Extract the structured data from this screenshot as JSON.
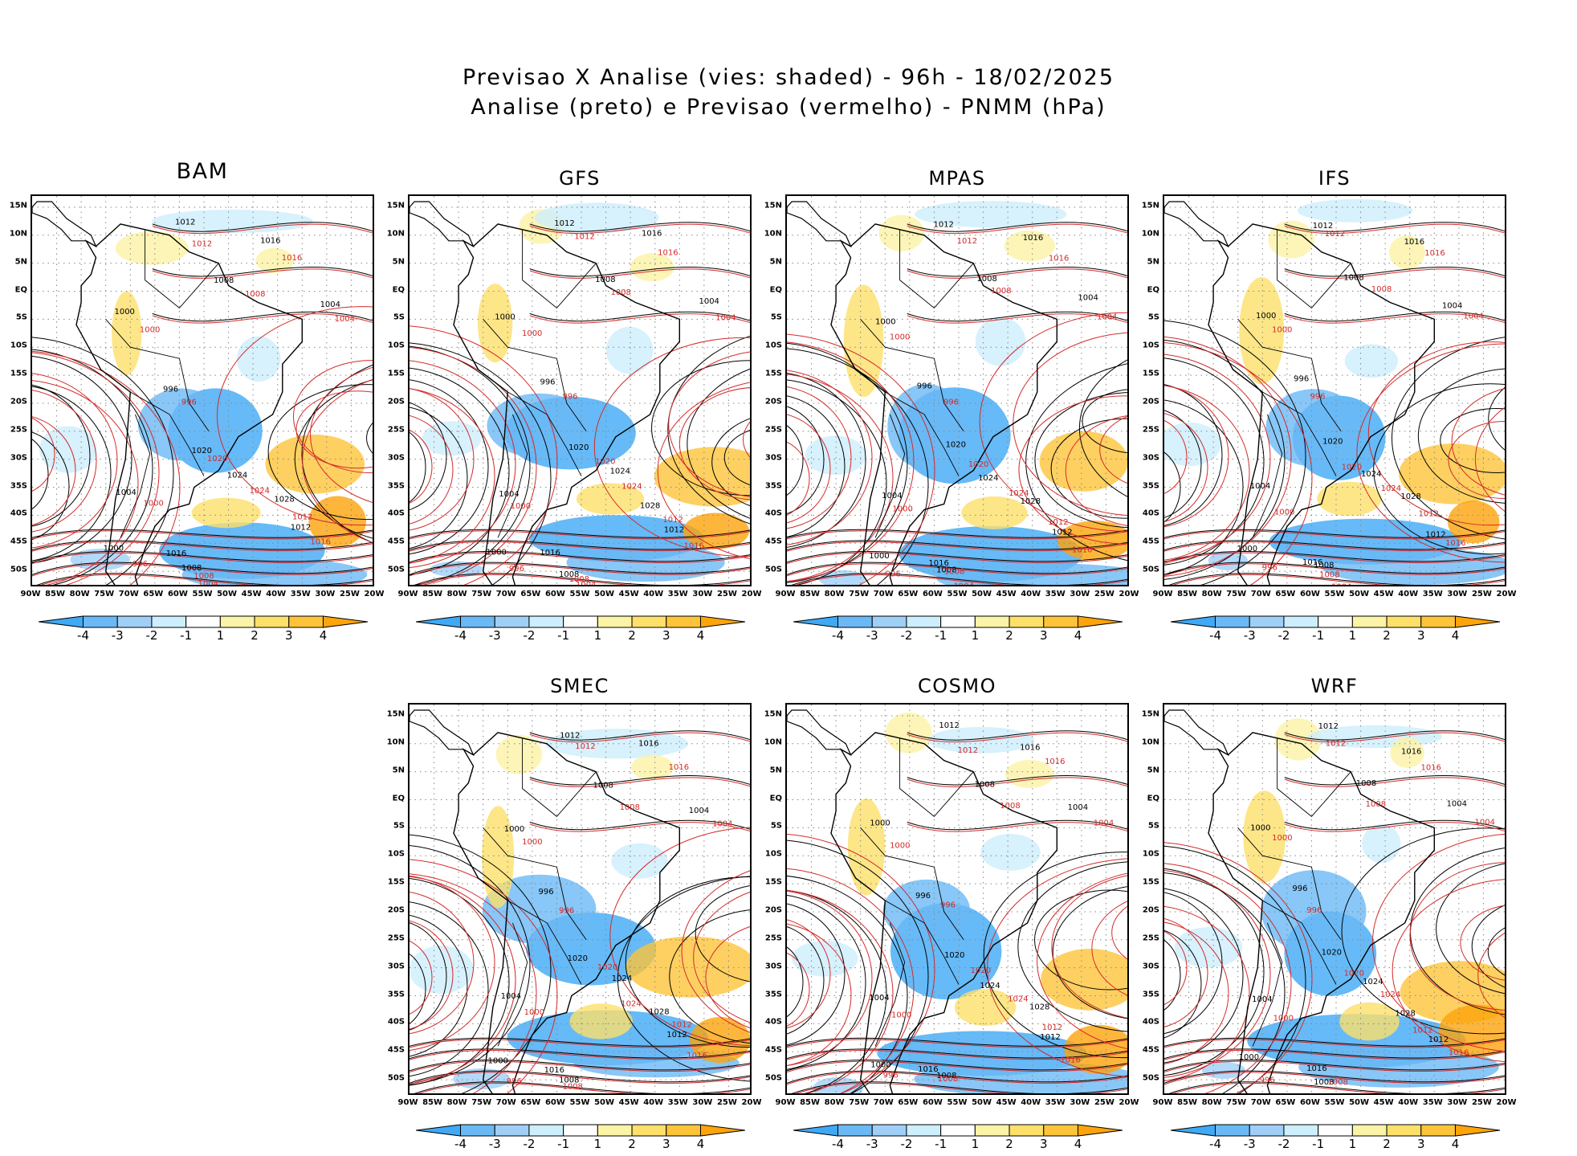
{
  "header": {
    "title_line1": "Previsao X Analise (vies: shaded) - 96h - 18/02/2025",
    "title_line2": "Analise (preto) e Previsao (vermelho) - PNMM (hPa)"
  },
  "panels": [
    {
      "model": "BAM"
    },
    {
      "model": "GFS"
    },
    {
      "model": "MPAS"
    },
    {
      "model": "IFS"
    },
    {
      "model": "SMEC"
    },
    {
      "model": "COSMO"
    },
    {
      "model": "WRF"
    }
  ],
  "lat_labels": [
    "15N",
    "10N",
    "5N",
    "EQ",
    "5S",
    "10S",
    "15S",
    "20S",
    "25S",
    "30S",
    "35S",
    "40S",
    "45S",
    "50S"
  ],
  "lon_labels": [
    "90W",
    "85W",
    "80W",
    "75W",
    "70W",
    "65W",
    "60W",
    "55W",
    "50W",
    "45W",
    "40W",
    "35W",
    "30W",
    "25W",
    "20W"
  ],
  "colorbar": {
    "labels": [
      "-4",
      "-3",
      "-2",
      "-1",
      "1",
      "2",
      "3",
      "4"
    ],
    "colors": [
      "#3fa9f5",
      "#6ab9f5",
      "#9fcff7",
      "#cdeefd",
      "#ffffff",
      "#fbf3a5",
      "#fde06a",
      "#fdc43a",
      "#fda40a"
    ]
  },
  "isobar_labels": {
    "analysis": [
      "1012",
      "1016",
      "1008",
      "1004",
      "1000",
      "996",
      "1020",
      "1024",
      "1028"
    ],
    "forecast": [
      "1012",
      "1016",
      "1008",
      "1004",
      "1000",
      "996",
      "1020",
      "1024"
    ]
  },
  "colors": {
    "analysis_contour": "#000000",
    "forecast_contour": "#d42a2a",
    "grid": "#888888"
  }
}
